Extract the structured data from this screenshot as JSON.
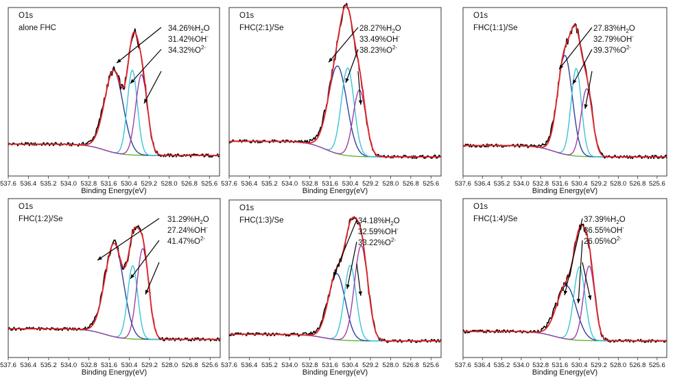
{
  "figure": {
    "colors": {
      "raw": "#000000",
      "envelope": "#e8242a",
      "water": "#2c3f9e",
      "hydroxide": "#38c3d6",
      "oxide": "#9b3fa8",
      "background": "#5bb830"
    },
    "shared_axes": {
      "xlabel": "Binding Energy(eV)",
      "xlim": [
        537.6,
        525.0
      ],
      "x_reversed": true,
      "xticks": [
        "537.6",
        "536.4",
        "535.2",
        "534.0",
        "532.8",
        "531.6",
        "530.4",
        "529.2",
        "528.0",
        "526.8",
        "525.6"
      ]
    }
  },
  "chart_data": [
    {
      "type": "line",
      "title": "O1s",
      "subtitle": "alone FHC",
      "xlabel": "Binding Energy(eV)",
      "xlim": [
        537.6,
        525.0
      ],
      "x_reversed": true,
      "xticks": [
        "537.6",
        "536.4",
        "535.2",
        "534.0",
        "532.8",
        "531.6",
        "530.4",
        "529.2",
        "528.0",
        "526.8",
        "525.6"
      ],
      "annotations": [
        {
          "pct": "34.26%",
          "species": "H",
          "sub": "2",
          "sup": "",
          "tail": "O"
        },
        {
          "pct": "31.42%",
          "species": "OH",
          "sub": "",
          "sup": "-",
          "tail": ""
        },
        {
          "pct": "34.32%",
          "species": "O",
          "sub": "",
          "sup": "2-",
          "tail": ""
        }
      ],
      "model": {
        "bg_hi": 0.13,
        "bg_lo": 0.05,
        "bg_mid": 531.9,
        "peaks": [
          {
            "name": "H2O",
            "center": 531.3,
            "height": 0.58,
            "width": 0.55
          },
          {
            "name": "OH-",
            "center": 530.2,
            "height": 0.6,
            "width": 0.3
          },
          {
            "name": "O2-",
            "center": 529.65,
            "height": 0.57,
            "width": 0.35
          }
        ]
      }
    },
    {
      "type": "line",
      "title": "O1s",
      "subtitle": "FHC(2:1)/Se",
      "xlabel": "Binding Energy(eV)",
      "xlim": [
        537.6,
        525.0
      ],
      "x_reversed": true,
      "xticks": [
        "537.6",
        "536.4",
        "535.2",
        "534.0",
        "532.8",
        "531.6",
        "530.4",
        "529.2",
        "528.0",
        "526.8",
        "525.6"
      ],
      "annotations": [
        {
          "pct": "28.27%",
          "species": "H",
          "sub": "2",
          "sup": "",
          "tail": "O"
        },
        {
          "pct": "33.49%",
          "species": "OH",
          "sub": "",
          "sup": "-",
          "tail": ""
        },
        {
          "pct": "38.23%",
          "species": "O",
          "sub": "",
          "sup": "2-",
          "tail": ""
        }
      ],
      "model": {
        "bg_hi": 0.15,
        "bg_lo": 0.04,
        "bg_mid": 531.9,
        "peaks": [
          {
            "name": "H2O",
            "center": 531.15,
            "height": 0.62,
            "width": 0.55
          },
          {
            "name": "OH-",
            "center": 530.55,
            "height": 0.62,
            "width": 0.38
          },
          {
            "name": "O2-",
            "center": 529.85,
            "height": 0.47,
            "width": 0.38
          }
        ]
      }
    },
    {
      "type": "line",
      "title": "O1s",
      "subtitle": "FHC(1:1)/Se",
      "xlabel": "Binding Energy(eV)",
      "xlim": [
        537.6,
        525.0
      ],
      "x_reversed": true,
      "xticks": [
        "537.6",
        "536.4",
        "535.2",
        "534.0",
        "532.8",
        "531.6",
        "530.4",
        "529.2",
        "528.0",
        "526.8",
        "525.6"
      ],
      "annotations": [
        {
          "pct": "27.83%",
          "species": "H",
          "sub": "2",
          "sup": "",
          "tail": "O"
        },
        {
          "pct": "32.79%",
          "species": "OH",
          "sub": "",
          "sup": "-",
          "tail": ""
        },
        {
          "pct": "39.37%",
          "species": "O",
          "sub": "",
          "sup": "2-",
          "tail": ""
        }
      ],
      "model": {
        "bg_hi": 0.12,
        "bg_lo": 0.04,
        "bg_mid": 532.0,
        "peaks": [
          {
            "name": "H2O",
            "center": 531.3,
            "height": 0.7,
            "width": 0.45
          },
          {
            "name": "OH-",
            "center": 530.6,
            "height": 0.62,
            "width": 0.32
          },
          {
            "name": "O2-",
            "center": 529.95,
            "height": 0.48,
            "width": 0.35
          }
        ]
      }
    },
    {
      "type": "line",
      "title": "O1s",
      "subtitle": "FHC(1:2)/Se",
      "xlabel": "Binding Energy(eV)",
      "xlim": [
        537.6,
        525.0
      ],
      "x_reversed": true,
      "xticks": [
        "537.6",
        "536.4",
        "535.2",
        "534.0",
        "532.8",
        "531.6",
        "530.4",
        "529.2",
        "528.0",
        "526.8",
        "525.6"
      ],
      "annotations": [
        {
          "pct": "31.29%",
          "species": "H",
          "sub": "2",
          "sup": "",
          "tail": "O"
        },
        {
          "pct": "27.24%",
          "species": "OH",
          "sub": "",
          "sup": "-",
          "tail": ""
        },
        {
          "pct": "41.47%",
          "species": "O",
          "sub": "",
          "sup": "2-",
          "tail": ""
        }
      ],
      "model": {
        "bg_hi": 0.12,
        "bg_lo": 0.04,
        "bg_mid": 531.9,
        "peaks": [
          {
            "name": "H2O",
            "center": 531.3,
            "height": 0.7,
            "width": 0.55
          },
          {
            "name": "OH-",
            "center": 530.2,
            "height": 0.55,
            "width": 0.3
          },
          {
            "name": "O2-",
            "center": 529.6,
            "height": 0.68,
            "width": 0.35
          }
        ]
      }
    },
    {
      "type": "line",
      "title": "O1s",
      "subtitle": "FHC(1:3)/Se",
      "xlabel": "Binding Energy(eV)",
      "xlim": [
        537.6,
        525.0
      ],
      "x_reversed": true,
      "xticks": [
        "537.6",
        "536.4",
        "535.2",
        "534.0",
        "532.8",
        "531.6",
        "530.4",
        "529.2",
        "528.0",
        "526.8",
        "525.6"
      ],
      "annotations": [
        {
          "pct": "34.18%",
          "species": "H",
          "sub": "2",
          "sup": "",
          "tail": "O"
        },
        {
          "pct": "32.59%",
          "species": "OH",
          "sub": "",
          "sup": "-",
          "tail": ""
        },
        {
          "pct": "33.22%",
          "species": "O",
          "sub": "",
          "sup": "2-",
          "tail": ""
        }
      ],
      "model": {
        "bg_hi": 0.08,
        "bg_lo": 0.03,
        "bg_mid": 532.0,
        "peaks": [
          {
            "name": "H2O",
            "center": 531.2,
            "height": 0.5,
            "width": 0.5
          },
          {
            "name": "OH-",
            "center": 530.4,
            "height": 0.57,
            "width": 0.35
          },
          {
            "name": "O2-",
            "center": 529.75,
            "height": 0.72,
            "width": 0.4
          }
        ]
      }
    },
    {
      "type": "line",
      "title": "O1s",
      "subtitle": "FHC(1:4)/Se",
      "xlabel": "Binding Energy(eV)",
      "xlim": [
        537.6,
        525.0
      ],
      "x_reversed": true,
      "xticks": [
        "537.6",
        "536.4",
        "535.2",
        "534.0",
        "532.8",
        "531.6",
        "530.4",
        "529.2",
        "528.0",
        "526.8",
        "525.6"
      ],
      "annotations": [
        {
          "pct": "37.39%",
          "species": "H",
          "sub": "2",
          "sup": "",
          "tail": "O"
        },
        {
          "pct": "36.55%",
          "species": "OH",
          "sub": "",
          "sup": "-",
          "tail": ""
        },
        {
          "pct": "26.05%",
          "species": "O",
          "sub": "",
          "sup": "2-",
          "tail": ""
        }
      ],
      "model": {
        "bg_hi": 0.1,
        "bg_lo": 0.03,
        "bg_mid": 532.0,
        "peaks": [
          {
            "name": "H2O",
            "center": 531.2,
            "height": 0.4,
            "width": 0.6
          },
          {
            "name": "OH-",
            "center": 530.4,
            "height": 0.55,
            "width": 0.35
          },
          {
            "name": "O2-",
            "center": 529.8,
            "height": 0.56,
            "width": 0.35
          }
        ]
      }
    }
  ]
}
